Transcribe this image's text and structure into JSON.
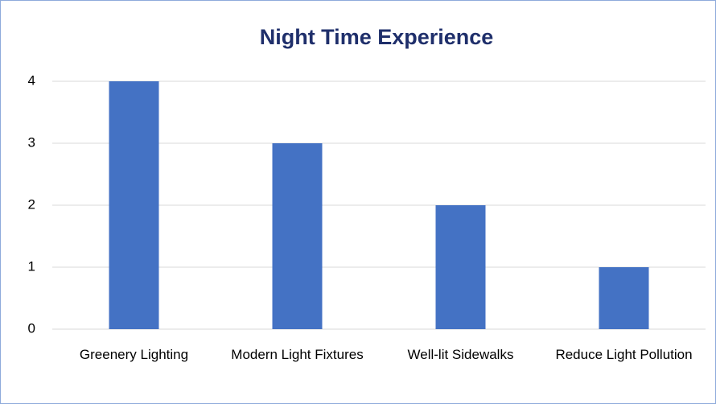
{
  "chart_data": {
    "type": "bar",
    "title": "Night Time Experience",
    "categories": [
      "Greenery Lighting",
      "Modern Light Fixtures",
      "Well-lit Sidewalks",
      "Reduce Light Pollution"
    ],
    "values": [
      4,
      3,
      2,
      1
    ],
    "color": "#4472c4",
    "ylim": [
      0,
      4
    ],
    "yticks": [
      0,
      1,
      2,
      3,
      4
    ],
    "grid": true
  }
}
